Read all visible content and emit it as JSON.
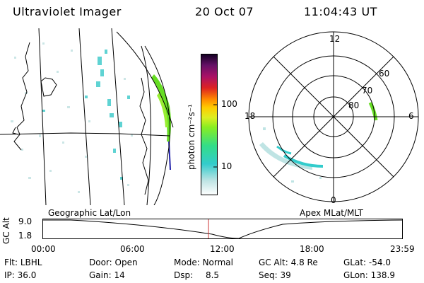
{
  "header": {
    "instrument": "Ultraviolet Imager",
    "date": "20 Oct 07",
    "time": "11:04:43 UT"
  },
  "colorbar": {
    "unit_label": "photon cm⁻²s⁻¹",
    "ticks": [
      "100",
      "10"
    ]
  },
  "polar": {
    "mlt_labels": [
      "12",
      "18",
      "6",
      "0"
    ],
    "lat_labels": [
      "60",
      "70",
      "80"
    ]
  },
  "left_panel_label": "Geographic Lat/Lon",
  "right_panel_label": "Apex MLat/MLT",
  "altitude_plot": {
    "ylabel": "GC Alt",
    "yticks": [
      "9.0",
      "1.8"
    ],
    "xticks": [
      "00:00",
      "06:00",
      "12:00",
      "18:00",
      "23:59"
    ]
  },
  "footer": [
    {
      "label": "Flt:",
      "value": "LBHL"
    },
    {
      "label": "Door:",
      "value": "Open"
    },
    {
      "label": "Mode:",
      "value": "Normal"
    },
    {
      "label": "GC Alt:",
      "value": "4.8 Re"
    },
    {
      "label": "GLat:",
      "value": "-54.0"
    },
    {
      "label": "IP:",
      "value": "36.0"
    },
    {
      "label": "Gain:",
      "value": "14"
    },
    {
      "label": "Dsp:",
      "value": "8.5"
    },
    {
      "label": "Seq:",
      "value": "39"
    },
    {
      "label": "GLon:",
      "value": "138.9"
    }
  ],
  "colors": {
    "auroral_green": "#66dd22",
    "auroral_cyan": "#33cccc",
    "marker": "#cc3333"
  }
}
